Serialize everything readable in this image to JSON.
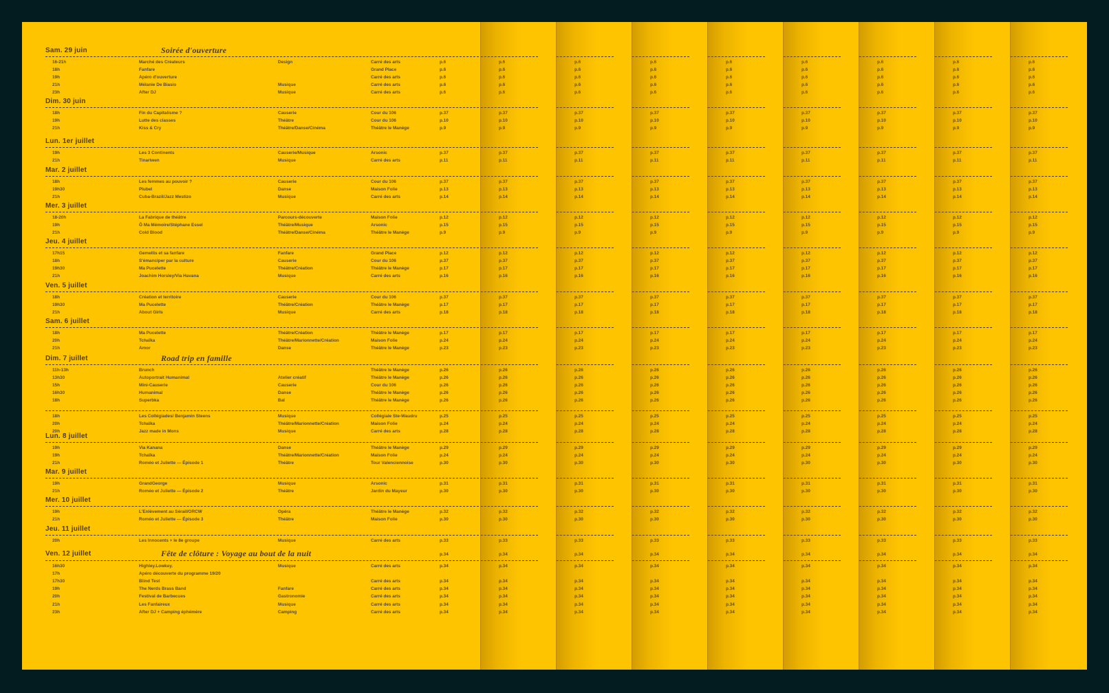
{
  "schedule": [
    {
      "day": "Sam. 29 juin",
      "subtitle": "Soirée d'ouverture",
      "events": [
        {
          "time": "16-21h",
          "title": "Marché des Créateurs",
          "category": "Design",
          "venue": "Carré des arts",
          "page": "p.6"
        },
        {
          "time": "18h",
          "title": "Fanfare",
          "category": "",
          "venue": "Grand Place",
          "page": "p.6"
        },
        {
          "time": "19h",
          "title": "Apéro d'ouverture",
          "category": "",
          "venue": "Carré des arts",
          "page": "p.6"
        },
        {
          "time": "21h",
          "title": "Mélanie De Biasio",
          "category": "Musique",
          "venue": "Carré des arts",
          "page": "p.6"
        },
        {
          "time": "23h",
          "title": "After DJ",
          "category": "Musique",
          "venue": "Carré des arts",
          "page": "p.6"
        }
      ]
    },
    {
      "day": "Dim. 30 juin",
      "subtitle": "",
      "events": [
        {
          "time": "18h",
          "title": "Fin du Capitalisme ?",
          "category": "Causerie",
          "venue": "Cour du 106",
          "page": "p.37"
        },
        {
          "time": "19h",
          "title": "Lutte des classes",
          "category": "Théâtre",
          "venue": "Cour du 106",
          "page": "p.10"
        },
        {
          "time": "21h",
          "title": "Kiss & Cry",
          "category": "Théâtre/Danse/Cinéma",
          "venue": "Théâtre le Manège",
          "page": "p.9"
        }
      ]
    },
    {
      "day": "Lun. 1er juillet",
      "subtitle": "",
      "events": [
        {
          "time": "19h",
          "title": "Les 3 Continents",
          "category": "Causerie/Musique",
          "venue": "Arsonic",
          "page": "p.37"
        },
        {
          "time": "21h",
          "title": "Tinariwen",
          "category": "Musique",
          "venue": "Carré des arts",
          "page": "p.11"
        }
      ]
    },
    {
      "day": "Mar. 2 juillet",
      "subtitle": "",
      "events": [
        {
          "time": "18h",
          "title": "Les femmes au pouvoir ?",
          "category": "Causerie",
          "venue": "Cour du 106",
          "page": "p.37"
        },
        {
          "time": "19h30",
          "title": "Plubel",
          "category": "Danse",
          "venue": "Maison Folie",
          "page": "p.13"
        },
        {
          "time": "21h",
          "title": "Cuba-Brazil/Jazz Mestizo",
          "category": "Musique",
          "venue": "Carré des arts",
          "page": "p.14"
        }
      ]
    },
    {
      "day": "Mer. 3 juillet",
      "subtitle": "",
      "events": [
        {
          "time": "18-20h",
          "title": "La Fabrique de théâtre",
          "category": "Parcours-découverte",
          "venue": "Maison Folie",
          "page": "p.12"
        },
        {
          "time": "19h",
          "title": "Ô Ma Mémoire/Stéphane Essel",
          "category": "Théâtre/Musique",
          "venue": "Arsonic",
          "page": "p.15"
        },
        {
          "time": "21h",
          "title": "Cold Blood",
          "category": "Théâtre/Danse/Cinéma",
          "venue": "Théâtre le Manège",
          "page": "p.9"
        }
      ]
    },
    {
      "day": "Jeu. 4 juillet",
      "subtitle": "",
      "events": [
        {
          "time": "17h15",
          "title": "Gemellis et sa fanfare",
          "category": "Fanfare",
          "venue": "Grand Place",
          "page": "p.12"
        },
        {
          "time": "18h",
          "title": "S'émanciper par la culture",
          "category": "Causerie",
          "venue": "Cour du 106",
          "page": "p.37"
        },
        {
          "time": "19h30",
          "title": "Ma Pucelette",
          "category": "Théâtre/Création",
          "venue": "Théâtre le Manège",
          "page": "p.17"
        },
        {
          "time": "21h",
          "title": "Joachim Horsley/Via Havana",
          "category": "Musique",
          "venue": "Carré des arts",
          "page": "p.16"
        }
      ]
    },
    {
      "day": "Ven. 5 juillet",
      "subtitle": "",
      "events": [
        {
          "time": "18h",
          "title": "Création et territoire",
          "category": "Causerie",
          "venue": "Cour du 106",
          "page": "p.37"
        },
        {
          "time": "19h30",
          "title": "Ma Pucelette",
          "category": "Théâtre/Création",
          "venue": "Théâtre le Manège",
          "page": "p.17"
        },
        {
          "time": "21h",
          "title": "About Girls",
          "category": "Musique",
          "venue": "Carré des arts",
          "page": "p.18"
        }
      ]
    },
    {
      "day": "Sam. 6 juillet",
      "subtitle": "",
      "events": [
        {
          "time": "18h",
          "title": "Ma Pucelette",
          "category": "Théâtre/Création",
          "venue": "Théâtre le Manège",
          "page": "p.17"
        },
        {
          "time": "20h",
          "title": "Tchaïka",
          "category": "Théâtre/Marionnette/Création",
          "venue": "Maison Folie",
          "page": "p.24"
        },
        {
          "time": "21h",
          "title": "Amor",
          "category": "Danse",
          "venue": "Théâtre le Manège",
          "page": "p.23"
        }
      ]
    },
    {
      "day": "Dim. 7 juillet",
      "subtitle": "Road trip en famille",
      "events": [
        {
          "time": "11h-13h",
          "title": "Brunch",
          "category": "",
          "venue": "Théâtre le Manège",
          "page": "p.26"
        },
        {
          "time": "13h30",
          "title": "Autoportrait Humanimal",
          "category": "Atelier créatif",
          "venue": "Théâtre le Manège",
          "page": "p.26"
        },
        {
          "time": "15h",
          "title": "Mini-Causerie",
          "category": "Causerie",
          "venue": "Cour du 106",
          "page": "p.26"
        },
        {
          "time": "16h30",
          "title": "Humanimal",
          "category": "Danse",
          "venue": "Théâtre le Manège",
          "page": "p.26"
        },
        {
          "time": "18h",
          "title": "Superbka",
          "category": "Bal",
          "venue": "Théâtre le Manège",
          "page": "p.26"
        }
      ],
      "extra": [
        {
          "time": "18h",
          "title": "Les Collégiades/ Benjamin Steens",
          "category": "Musique",
          "venue": "Collégiale Ste-Waudru",
          "page": "p.25"
        },
        {
          "time": "20h",
          "title": "Tchaïka",
          "category": "Théâtre/Marionnette/Création",
          "venue": "Maison Folie",
          "page": "p.24"
        },
        {
          "time": "20h",
          "title": "Jazz made in Mons",
          "category": "Musique",
          "venue": "Carré des arts",
          "page": "p.28"
        }
      ]
    },
    {
      "day": "Lun. 8 juillet",
      "subtitle": "",
      "events": [
        {
          "time": "19h",
          "title": "Via Kanana",
          "category": "Danse",
          "venue": "Théâtre le Manège",
          "page": "p.29"
        },
        {
          "time": "19h",
          "title": "Tchaïka",
          "category": "Théâtre/Marionnette/Création",
          "venue": "Maison Folie",
          "page": "p.24"
        },
        {
          "time": "21h",
          "title": "Roméo et Juliette — Épisode 1",
          "category": "Théâtre",
          "venue": "Tour Valenciennoise",
          "page": "p.30"
        }
      ]
    },
    {
      "day": "Mar. 9 juillet",
      "subtitle": "",
      "events": [
        {
          "time": "19h",
          "title": "GrandGeorge",
          "category": "Musique",
          "venue": "Arsonic",
          "page": "p.31"
        },
        {
          "time": "21h",
          "title": "Roméo et Juliette — Épisode 2",
          "category": "Théâtre",
          "venue": "Jardin du Mayeur",
          "page": "p.30"
        }
      ]
    },
    {
      "day": "Mer. 10 juillet",
      "subtitle": "",
      "events": [
        {
          "time": "19h",
          "title": "L'Enlèvement au Sérail/ORCW",
          "category": "Opéra",
          "venue": "Théâtre le Manège",
          "page": "p.32"
        },
        {
          "time": "21h",
          "title": "Roméo et Juliette — Épisode 3",
          "category": "Théâtre",
          "venue": "Maison Folie",
          "page": "p.30"
        }
      ]
    },
    {
      "day": "Jeu. 11 juillet",
      "subtitle": "",
      "events": [
        {
          "time": "20h",
          "title": "Les Innocents + le 8e groupe",
          "category": "Musique",
          "venue": "Carré des arts",
          "page": "p.33"
        }
      ]
    },
    {
      "day": "Ven. 12 juillet",
      "subtitle": "Fête de clôture : Voyage au bout de la nuit",
      "header_page": "p.34",
      "events": [
        {
          "time": "16h30",
          "title": "Highley.Lowkey.",
          "category": "Musique",
          "venue": "Carré des arts",
          "page": "p.34"
        },
        {
          "time": "17h",
          "title": "Apéro découverte du programme 19/20",
          "category": "",
          "venue": "",
          "page": ""
        },
        {
          "time": "17h30",
          "title": "Blind Test",
          "category": "",
          "venue": "Carré des arts",
          "page": "p.34"
        },
        {
          "time": "19h",
          "title": "The Nerds Brass Band",
          "category": "Fanfare",
          "venue": "Carré des arts",
          "page": "p.34"
        },
        {
          "time": "20h",
          "title": "Festival de Barbecues",
          "category": "Gastronomie",
          "venue": "Carré des arts",
          "page": "p.34"
        },
        {
          "time": "21h",
          "title": "Les Fanfaireux",
          "category": "Musique",
          "venue": "Carré des arts",
          "page": "p.34"
        },
        {
          "time": "23h",
          "title": "After DJ + Camping éphémère",
          "category": "Camping",
          "venue": "Carré des arts",
          "page": "p.34"
        }
      ]
    }
  ]
}
